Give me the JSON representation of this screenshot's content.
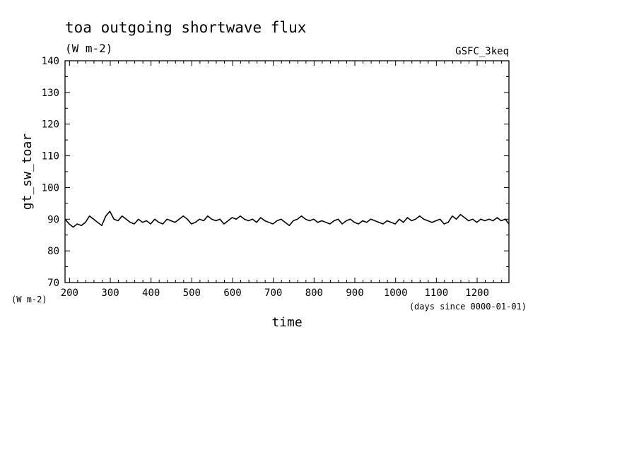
{
  "chart_data": {
    "type": "line",
    "title": "toa outgoing shortwave flux",
    "units": "(W m-2)",
    "source_label": "GSFC_3keq",
    "xlabel": "time",
    "x_units": "(days since 0000-01-01)",
    "ylabel": "gt_sw_toar",
    "y_units": "(W m-2)",
    "xlim": [
      189,
      1278
    ],
    "ylim": [
      70,
      140
    ],
    "x_ticks": [
      200,
      300,
      400,
      500,
      600,
      700,
      800,
      900,
      1000,
      1100,
      1200
    ],
    "y_ticks": [
      70,
      80,
      90,
      100,
      110,
      120,
      130,
      140
    ],
    "grid": false,
    "series": [
      {
        "color": "#000000",
        "x": [
          189,
          199,
          209,
          219,
          229,
          239,
          249,
          259,
          269,
          279,
          289,
          299,
          309,
          319,
          329,
          339,
          349,
          359,
          369,
          379,
          389,
          399,
          409,
          419,
          429,
          439,
          449,
          459,
          469,
          479,
          489,
          499,
          509,
          519,
          529,
          539,
          549,
          559,
          569,
          579,
          589,
          599,
          609,
          619,
          629,
          639,
          649,
          659,
          669,
          679,
          689,
          699,
          709,
          719,
          729,
          739,
          749,
          759,
          769,
          779,
          789,
          799,
          809,
          819,
          829,
          839,
          849,
          859,
          869,
          879,
          889,
          899,
          909,
          919,
          929,
          939,
          949,
          959,
          969,
          979,
          989,
          999,
          1009,
          1019,
          1029,
          1039,
          1049,
          1059,
          1069,
          1079,
          1089,
          1099,
          1109,
          1119,
          1129,
          1139,
          1149,
          1159,
          1169,
          1179,
          1189,
          1199,
          1209,
          1219,
          1229,
          1239,
          1249,
          1259,
          1269,
          1278
        ],
        "y": [
          90,
          88.5,
          87.5,
          88.5,
          88,
          89,
          91,
          90,
          89,
          88,
          91,
          92.5,
          90,
          89.5,
          91,
          90,
          89,
          88.5,
          90,
          89,
          89.5,
          88.5,
          90,
          89,
          88.5,
          90,
          89.5,
          89,
          90,
          91,
          90,
          88.5,
          89,
          90,
          89.5,
          91,
          90,
          89.5,
          90,
          88.5,
          89.5,
          90.5,
          90,
          91,
          90,
          89.5,
          90,
          89,
          90.5,
          89.5,
          89,
          88.5,
          89.5,
          90,
          89,
          88,
          89.5,
          90,
          91,
          90,
          89.5,
          90,
          89,
          89.5,
          89,
          88.5,
          89.5,
          90,
          88.5,
          89.5,
          90,
          89,
          88.5,
          89.5,
          89,
          90,
          89.5,
          89,
          88.5,
          89.5,
          89,
          88.5,
          90,
          89,
          90.5,
          89.5,
          90,
          91,
          90,
          89.5,
          89,
          89.5,
          90,
          88.5,
          89,
          91,
          90,
          91.5,
          90.5,
          89.5,
          90,
          89,
          90,
          89.5,
          90,
          89.5,
          90.5,
          89.5,
          90,
          88.5
        ]
      }
    ]
  }
}
